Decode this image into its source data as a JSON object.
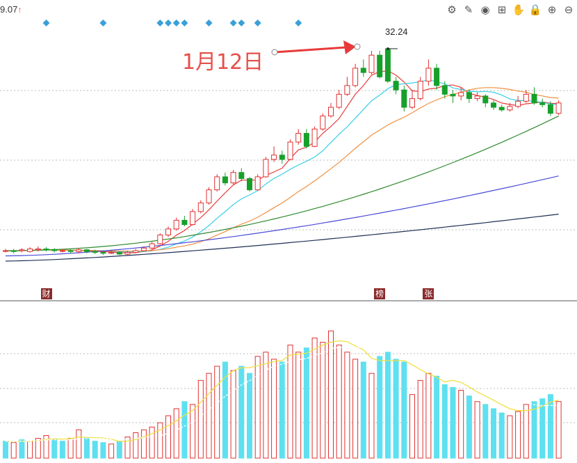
{
  "header": {
    "corner_value": "9.07",
    "corner_arrow": "↑"
  },
  "toolbar": [
    {
      "name": "settings-icon",
      "glyph": "⚙"
    },
    {
      "name": "pen-icon",
      "glyph": "✎"
    },
    {
      "name": "eye-icon",
      "glyph": "◉"
    },
    {
      "name": "toolbox-icon",
      "glyph": "⊞"
    },
    {
      "name": "hand-icon",
      "glyph": "✋"
    },
    {
      "name": "lock-icon",
      "glyph": "🔒"
    },
    {
      "name": "zoom-in-icon",
      "glyph": "⊕"
    },
    {
      "name": "zoom-out-icon",
      "glyph": "⊖"
    }
  ],
  "annotation": {
    "text": "1月12日",
    "color": "#e5504a"
  },
  "peak": {
    "label": "32.24",
    "value": 32.24,
    "bar_index": 47
  },
  "event_tags": [
    {
      "text": "财",
      "bar_index": 5
    },
    {
      "text": "榜",
      "bar_index": 46
    },
    {
      "text": "张",
      "bar_index": 52
    }
  ],
  "diamond_markers": [
    5,
    12,
    19,
    20,
    21,
    22,
    25,
    28,
    29,
    31,
    36
  ],
  "colors": {
    "up": "#e03030",
    "down": "#16a02a",
    "vol_down": "#5ee0f0",
    "marker": "#3aa0d8",
    "ma5": "#e83a3a",
    "ma10": "#38d0e8",
    "ma20": "#f09040",
    "ma60": "#2f8a2f",
    "ma120": "#4a4ad8",
    "ma250": "#1e2e55",
    "vol_ma_a": "#f0e040",
    "vol_ma_b": "#ffffff"
  },
  "chart_data": {
    "type": "candlestick",
    "y_range": [
      7.0,
      34.0
    ],
    "volume_range": [
      0,
      100
    ],
    "ohlc": [
      [
        9.0,
        9.0,
        9.2,
        8.8
      ],
      [
        9.0,
        8.9,
        9.2,
        8.7
      ],
      [
        9.0,
        9.1,
        9.3,
        8.8
      ],
      [
        8.9,
        9.2,
        9.4,
        8.8
      ],
      [
        9.1,
        9.2,
        9.5,
        8.9
      ],
      [
        9.2,
        9.1,
        9.4,
        8.9
      ],
      [
        9.1,
        9.0,
        9.3,
        8.8
      ],
      [
        9.0,
        9.0,
        9.2,
        8.8
      ],
      [
        9.0,
        8.9,
        9.2,
        8.7
      ],
      [
        8.9,
        9.1,
        9.3,
        8.7
      ],
      [
        9.1,
        8.9,
        9.2,
        8.7
      ],
      [
        8.9,
        8.8,
        9.1,
        8.6
      ],
      [
        8.8,
        8.7,
        9.0,
        8.5
      ],
      [
        8.7,
        8.8,
        9.0,
        8.6
      ],
      [
        8.8,
        8.6,
        8.9,
        8.5
      ],
      [
        8.6,
        8.8,
        9.0,
        8.5
      ],
      [
        8.8,
        9.0,
        9.2,
        8.7
      ],
      [
        9.0,
        9.3,
        9.5,
        8.9
      ],
      [
        9.3,
        9.8,
        10.0,
        9.2
      ],
      [
        9.8,
        10.8,
        11.0,
        9.7
      ],
      [
        10.8,
        11.5,
        11.8,
        10.6
      ],
      [
        11.5,
        12.5,
        12.8,
        11.3
      ],
      [
        12.5,
        12.0,
        13.0,
        11.8
      ],
      [
        12.0,
        13.5,
        13.8,
        11.9
      ],
      [
        13.5,
        14.5,
        14.8,
        13.3
      ],
      [
        14.5,
        16.0,
        16.3,
        14.3
      ],
      [
        16.0,
        17.5,
        17.8,
        15.8
      ],
      [
        17.5,
        16.8,
        18.0,
        16.5
      ],
      [
        16.8,
        18.0,
        18.3,
        16.6
      ],
      [
        18.0,
        17.3,
        18.5,
        17.0
      ],
      [
        17.3,
        16.0,
        17.5,
        15.8
      ],
      [
        16.0,
        17.5,
        17.8,
        15.9
      ],
      [
        17.5,
        19.5,
        19.8,
        17.4
      ],
      [
        19.5,
        20.0,
        21.0,
        19.2
      ],
      [
        20.0,
        19.5,
        20.5,
        19.0
      ],
      [
        19.5,
        21.5,
        21.8,
        19.4
      ],
      [
        21.5,
        22.5,
        23.0,
        21.2
      ],
      [
        22.5,
        21.0,
        23.0,
        20.8
      ],
      [
        21.0,
        23.0,
        23.3,
        20.9
      ],
      [
        23.0,
        24.5,
        24.8,
        22.8
      ],
      [
        24.5,
        25.5,
        26.0,
        24.3
      ],
      [
        25.5,
        27.0,
        27.5,
        25.3
      ],
      [
        27.0,
        28.0,
        29.0,
        26.8
      ],
      [
        28.0,
        30.0,
        30.5,
        27.8
      ],
      [
        30.0,
        29.5,
        31.0,
        29.0
      ],
      [
        29.5,
        31.5,
        32.0,
        29.3
      ],
      [
        31.5,
        29.0,
        32.0,
        28.8
      ],
      [
        32.24,
        28.5,
        32.24,
        28.3
      ],
      [
        28.5,
        27.5,
        29.0,
        27.0
      ],
      [
        27.5,
        25.5,
        28.0,
        25.0
      ],
      [
        25.5,
        26.5,
        27.5,
        25.3
      ],
      [
        26.5,
        28.5,
        29.0,
        26.3
      ],
      [
        28.5,
        30.0,
        31.0,
        28.0
      ],
      [
        30.0,
        28.0,
        30.5,
        27.5
      ],
      [
        28.0,
        27.0,
        28.5,
        26.5
      ],
      [
        27.0,
        26.8,
        27.5,
        26.0
      ],
      [
        26.8,
        27.2,
        27.8,
        26.3
      ],
      [
        27.2,
        26.5,
        27.5,
        26.0
      ],
      [
        26.5,
        26.8,
        27.2,
        26.2
      ],
      [
        26.8,
        26.0,
        27.0,
        25.5
      ],
      [
        26.0,
        25.5,
        26.3,
        25.2
      ],
      [
        25.5,
        25.2,
        25.8,
        25.0
      ],
      [
        25.2,
        25.6,
        26.0,
        25.0
      ],
      [
        25.6,
        26.2,
        26.8,
        25.4
      ],
      [
        26.2,
        27.0,
        27.5,
        26.0
      ],
      [
        27.0,
        26.0,
        27.8,
        25.8
      ],
      [
        26.0,
        25.8,
        26.5,
        25.5
      ],
      [
        25.8,
        24.8,
        26.2,
        24.5
      ],
      [
        24.8,
        26.0,
        26.3,
        24.6
      ]
    ],
    "volume": [
      12,
      11,
      13,
      12,
      14,
      16,
      13,
      12,
      14,
      20,
      14,
      12,
      11,
      10,
      12,
      15,
      18,
      20,
      22,
      25,
      30,
      35,
      40,
      38,
      55,
      60,
      65,
      68,
      62,
      65,
      60,
      72,
      75,
      70,
      68,
      80,
      75,
      78,
      85,
      82,
      90,
      80,
      75,
      70,
      68,
      60,
      72,
      75,
      70,
      68,
      45,
      55,
      60,
      58,
      52,
      50,
      48,
      44,
      40,
      38,
      35,
      32,
      30,
      33,
      38,
      40,
      42,
      45,
      40
    ],
    "volume_up": [
      0,
      1,
      0,
      1,
      1,
      1,
      0,
      0,
      1,
      1,
      0,
      0,
      0,
      1,
      0,
      1,
      1,
      1,
      1,
      1,
      1,
      1,
      0,
      1,
      1,
      1,
      1,
      0,
      1,
      0,
      0,
      1,
      1,
      1,
      0,
      1,
      1,
      0,
      1,
      1,
      1,
      1,
      1,
      1,
      0,
      1,
      0,
      0,
      0,
      0,
      1,
      1,
      1,
      0,
      0,
      0,
      1,
      0,
      1,
      0,
      0,
      0,
      1,
      1,
      1,
      0,
      0,
      0,
      1
    ]
  }
}
